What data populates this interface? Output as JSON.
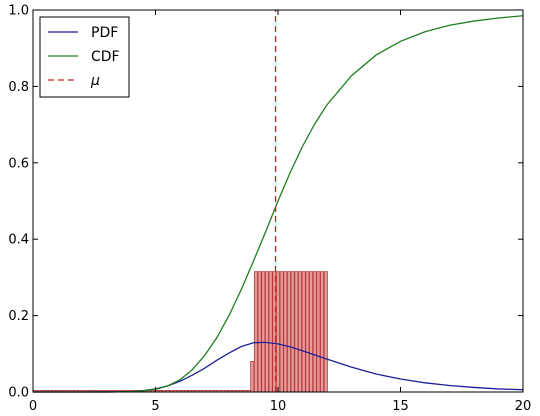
{
  "chart_data": {
    "type": "line",
    "xlim": [
      0,
      20
    ],
    "ylim": [
      0,
      1.0
    ],
    "x_ticks": [
      0,
      5,
      10,
      15,
      20
    ],
    "y_ticks": [
      0.0,
      0.2,
      0.4,
      0.6,
      0.8,
      1.0
    ],
    "x_tick_labels": [
      "0",
      "5",
      "10",
      "15",
      "20"
    ],
    "y_tick_labels": [
      "0.0",
      "0.2",
      "0.4",
      "0.6",
      "0.8",
      "1.0"
    ],
    "grid": false,
    "legend_position": "top-left",
    "series": [
      {
        "name": "PDF",
        "color": "#1f1f9a",
        "style": "solid",
        "x": [
          0,
          1,
          2,
          3,
          3.5,
          4,
          4.5,
          5,
          5.5,
          6,
          6.5,
          7,
          7.5,
          8,
          8.5,
          9,
          9.5,
          10,
          10.5,
          11,
          12,
          13,
          14,
          15,
          16,
          17,
          18,
          19,
          20
        ],
        "y": [
          0,
          0,
          0,
          0.0001,
          0.0004,
          0.0013,
          0.0035,
          0.008,
          0.016,
          0.028,
          0.044,
          0.062,
          0.083,
          0.102,
          0.119,
          0.129,
          0.13,
          0.126,
          0.118,
          0.108,
          0.086,
          0.065,
          0.047,
          0.034,
          0.024,
          0.017,
          0.012,
          0.008,
          0.006
        ]
      },
      {
        "name": "CDF",
        "color": "#1f7f1f",
        "style": "solid",
        "x": [
          0,
          1,
          2,
          3,
          3.5,
          4,
          4.5,
          5,
          5.5,
          6,
          6.5,
          7,
          7.5,
          8,
          8.5,
          9,
          9.5,
          10,
          10.5,
          11,
          11.5,
          12,
          13,
          14,
          15,
          16,
          17,
          18,
          19,
          20
        ],
        "y": [
          0,
          0,
          0,
          0.0001,
          0.0003,
          0.001,
          0.003,
          0.007,
          0.016,
          0.032,
          0.058,
          0.095,
          0.142,
          0.2,
          0.268,
          0.343,
          0.42,
          0.5,
          0.575,
          0.643,
          0.702,
          0.752,
          0.828,
          0.882,
          0.918,
          0.943,
          0.96,
          0.971,
          0.979,
          0.985
        ]
      },
      {
        "name": "μ",
        "color": "#cc2222",
        "style": "dashed",
        "x": [
          9.9,
          9.9
        ],
        "y": [
          0,
          1.0
        ]
      }
    ],
    "histogram": {
      "fill": "#e69a9a",
      "edge": "#b33a3a",
      "bin_width": 0.13,
      "bins": [
        {
          "x": 0.1,
          "y": 0.004
        },
        {
          "x": 0.25,
          "y": 0.004
        },
        {
          "x": 0.4,
          "y": 0.004
        },
        {
          "x": 0.55,
          "y": 0.004
        },
        {
          "x": 0.7,
          "y": 0.004
        },
        {
          "x": 0.85,
          "y": 0.004
        },
        {
          "x": 1.0,
          "y": 0.004
        },
        {
          "x": 1.15,
          "y": 0.004
        },
        {
          "x": 1.3,
          "y": 0.004
        },
        {
          "x": 1.45,
          "y": 0.004
        },
        {
          "x": 1.6,
          "y": 0.004
        },
        {
          "x": 1.75,
          "y": 0.004
        },
        {
          "x": 1.9,
          "y": 0.004
        },
        {
          "x": 2.05,
          "y": 0.004
        },
        {
          "x": 2.2,
          "y": 0.004
        },
        {
          "x": 2.35,
          "y": 0.004
        },
        {
          "x": 2.5,
          "y": 0.004
        },
        {
          "x": 2.65,
          "y": 0.004
        },
        {
          "x": 2.8,
          "y": 0.004
        },
        {
          "x": 2.95,
          "y": 0.004
        },
        {
          "x": 3.1,
          "y": 0.004
        },
        {
          "x": 3.25,
          "y": 0.004
        },
        {
          "x": 3.4,
          "y": 0.004
        },
        {
          "x": 3.55,
          "y": 0.004
        },
        {
          "x": 3.7,
          "y": 0.004
        },
        {
          "x": 3.85,
          "y": 0.004
        },
        {
          "x": 4.0,
          "y": 0.004
        },
        {
          "x": 4.15,
          "y": 0.004
        },
        {
          "x": 4.3,
          "y": 0.004
        },
        {
          "x": 4.45,
          "y": 0.004
        },
        {
          "x": 4.6,
          "y": 0.004
        },
        {
          "x": 4.75,
          "y": 0.004
        },
        {
          "x": 4.9,
          "y": 0.004
        },
        {
          "x": 5.05,
          "y": 0.004
        },
        {
          "x": 5.2,
          "y": 0.004
        },
        {
          "x": 5.35,
          "y": 0.004
        },
        {
          "x": 5.5,
          "y": 0.004
        },
        {
          "x": 5.65,
          "y": 0.004
        },
        {
          "x": 5.8,
          "y": 0.004
        },
        {
          "x": 5.95,
          "y": 0.004
        },
        {
          "x": 6.1,
          "y": 0.004
        },
        {
          "x": 6.25,
          "y": 0.004
        },
        {
          "x": 6.4,
          "y": 0.004
        },
        {
          "x": 6.55,
          "y": 0.004
        },
        {
          "x": 6.7,
          "y": 0.004
        },
        {
          "x": 6.85,
          "y": 0.004
        },
        {
          "x": 7.0,
          "y": 0.004
        },
        {
          "x": 7.15,
          "y": 0.004
        },
        {
          "x": 7.3,
          "y": 0.004
        },
        {
          "x": 7.45,
          "y": 0.004
        },
        {
          "x": 7.6,
          "y": 0.004
        },
        {
          "x": 7.75,
          "y": 0.004
        },
        {
          "x": 7.9,
          "y": 0.004
        },
        {
          "x": 8.05,
          "y": 0.004
        },
        {
          "x": 8.2,
          "y": 0.004
        },
        {
          "x": 8.35,
          "y": 0.004
        },
        {
          "x": 8.5,
          "y": 0.004
        },
        {
          "x": 8.65,
          "y": 0.004
        },
        {
          "x": 8.8,
          "y": 0.004
        },
        {
          "x": 8.95,
          "y": 0.08
        },
        {
          "x": 9.1,
          "y": 0.315
        },
        {
          "x": 9.25,
          "y": 0.315
        },
        {
          "x": 9.4,
          "y": 0.315
        },
        {
          "x": 9.55,
          "y": 0.315
        },
        {
          "x": 9.7,
          "y": 0.315
        },
        {
          "x": 9.85,
          "y": 0.315
        },
        {
          "x": 10.0,
          "y": 0.315
        },
        {
          "x": 10.15,
          "y": 0.315
        },
        {
          "x": 10.3,
          "y": 0.315
        },
        {
          "x": 10.45,
          "y": 0.315
        },
        {
          "x": 10.6,
          "y": 0.315
        },
        {
          "x": 10.75,
          "y": 0.315
        },
        {
          "x": 10.9,
          "y": 0.315
        },
        {
          "x": 11.05,
          "y": 0.315
        },
        {
          "x": 11.2,
          "y": 0.315
        },
        {
          "x": 11.35,
          "y": 0.315
        },
        {
          "x": 11.5,
          "y": 0.315
        },
        {
          "x": 11.65,
          "y": 0.315
        },
        {
          "x": 11.8,
          "y": 0.315
        },
        {
          "x": 11.95,
          "y": 0.315
        }
      ]
    },
    "legend": [
      {
        "label": "PDF",
        "color": "#1f1f9a",
        "style": "solid"
      },
      {
        "label": "CDF",
        "color": "#1f7f1f",
        "style": "solid"
      },
      {
        "label": "μ",
        "color": "#cc2222",
        "style": "dashed"
      }
    ]
  }
}
